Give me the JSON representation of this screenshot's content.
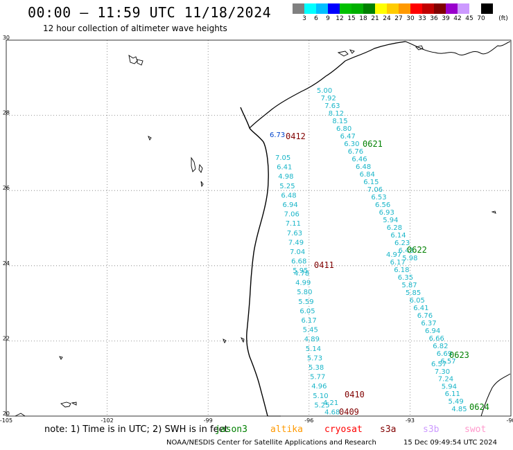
{
  "header": {
    "title": "00:00 – 11:59 UTC 11/18/2024",
    "subtitle": "12 hour collection of altimeter wave heights"
  },
  "colorbar": {
    "colors": [
      "#808080",
      "#00ffff",
      "#00bfff",
      "#0000ff",
      "#00c000",
      "#00b000",
      "#008000",
      "#ffff00",
      "#ffcc00",
      "#ff9900",
      "#ff0000",
      "#c00000",
      "#800000",
      "#9900cc",
      "#cc99ff",
      "#ffffff",
      "#000000"
    ],
    "labels": [
      "3",
      "6",
      "9",
      "12",
      "15",
      "18",
      "21",
      "24",
      "27",
      "30",
      "33",
      "36",
      "39",
      "42",
      "45",
      "70"
    ],
    "unit": "(ft)"
  },
  "axes": {
    "lat_labels": [
      "30",
      "28",
      "26",
      "24",
      "22",
      "20"
    ],
    "lon_labels": [
      "-105",
      "-102",
      "-99",
      "-96",
      "-93",
      "-90"
    ]
  },
  "tracks": [
    {
      "id": "0412",
      "color": "#800000",
      "values": [
        "6.73"
      ]
    },
    {
      "id": "0411",
      "color": "#800000",
      "values": [
        "7.05",
        "6.41",
        "4.98",
        "5.25",
        "6.48",
        "6.94",
        "7.06",
        "7.11",
        "7.63",
        "7.49",
        "7.04",
        "6.68",
        "5.95"
      ]
    },
    {
      "id": "0410",
      "color": "#800000",
      "values": [
        "4.78",
        "4.99",
        "5.80",
        "5.59",
        "6.05",
        "6.17",
        "5.45",
        "4.89",
        "5.14",
        "5.73",
        "5.38",
        "5.77",
        "4.96",
        "5.10",
        "5.25"
      ]
    },
    {
      "id": "0409",
      "color": "#800000",
      "values": [
        "4.21",
        "4.68"
      ]
    },
    {
      "id": "0621",
      "color": "#008000",
      "values": [
        "5.00",
        "7.92",
        "7.63",
        "8.12",
        "8.15",
        "6.80",
        "6.47",
        "6.30",
        "6.76",
        "6.46",
        "6.48",
        "6.84",
        "6.15",
        "7.06",
        "6.53",
        "6.56",
        "6.93",
        "5.94",
        "6.28",
        "6.14",
        "6.23",
        "6.43",
        "5.98"
      ]
    },
    {
      "id": "0622",
      "color": "#008000",
      "values": [
        "4.97",
        "6.17",
        "6.18",
        "6.35",
        "5.87",
        "5.85",
        "6.05",
        "6.41",
        "6.76",
        "6.37",
        "6.94",
        "6.66",
        "6.82",
        "6.69",
        "6.57"
      ]
    },
    {
      "id": "0623",
      "color": "#008000",
      "values": [
        "6.57",
        "7.30",
        "7.24",
        "5.94",
        "6.11",
        "5.49",
        "4.85"
      ]
    },
    {
      "id": "0624",
      "color": "#008000",
      "values": []
    }
  ],
  "track_labels": {
    "t0412": "0412",
    "t0411": "0411",
    "t0410": "0410",
    "t0409": "0409",
    "t0621": "0621",
    "t0622": "0622",
    "t0623": "0623",
    "t0624": "0624"
  },
  "bottom": {
    "note": "note: 1) Time is in UTC; 2) SWH is in feet",
    "satellites": [
      {
        "name": "jason3",
        "color": "#008000"
      },
      {
        "name": "altika",
        "color": "#ff9900"
      },
      {
        "name": "cryosat",
        "color": "#ff0000"
      },
      {
        "name": "s3a",
        "color": "#800000"
      },
      {
        "name": "s3b",
        "color": "#cc99ff"
      },
      {
        "name": "swot",
        "color": "#ff99cc"
      }
    ],
    "footer": "NOAA/NESDIS Center for Satellite Applications and Research",
    "timestamp": "15 Dec 09:49:54 UTC 2024"
  }
}
